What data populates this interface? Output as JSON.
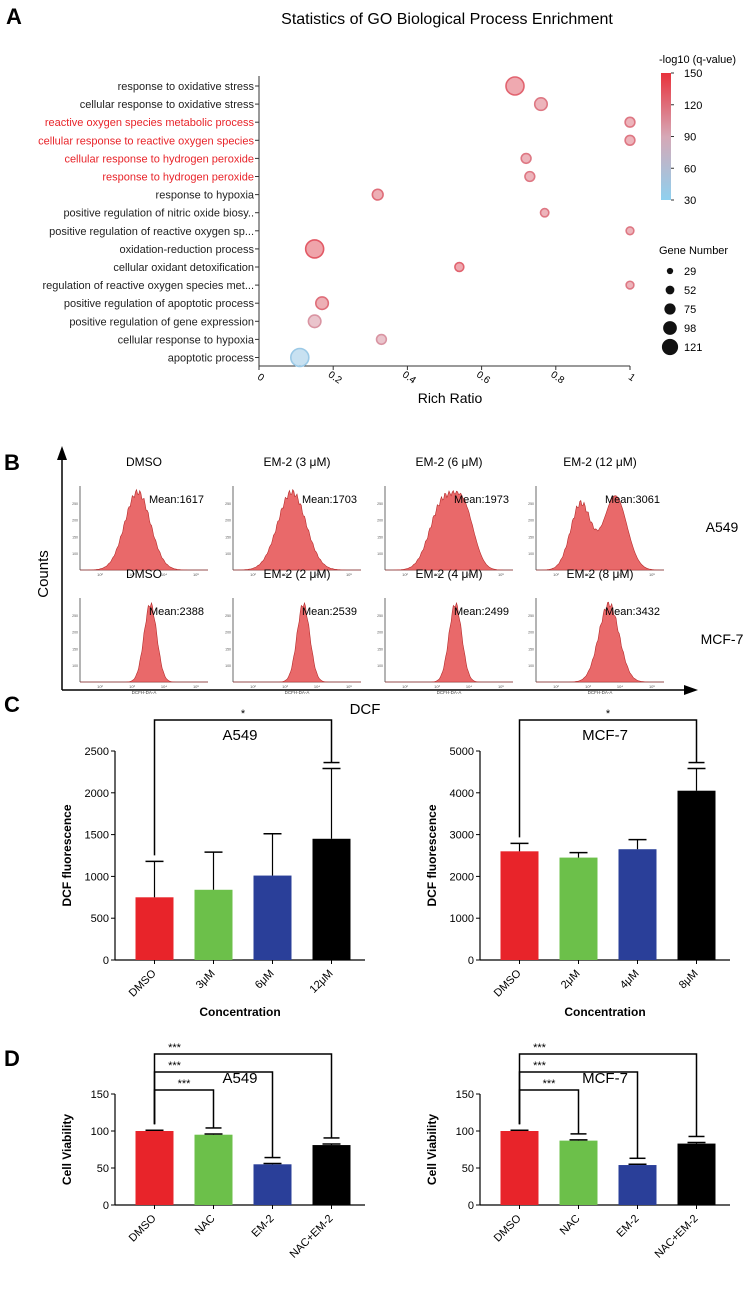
{
  "panel_labels": {
    "a": "A",
    "b": "B",
    "c": "C",
    "d": "D"
  },
  "colors": {
    "red": "#e8242a",
    "green": "#6cc04a",
    "blue": "#2a3f99",
    "black": "#000000",
    "hist_fill": "#e9696a",
    "hist_stroke": "#b52a2a",
    "scale_top": "#e8323c",
    "scale_mid": "#d6a8b6",
    "scale_bottom": "#8fd0ef"
  },
  "chart_data": [
    {
      "id": "go_enrichment",
      "type": "scatter",
      "title": "Statistics of GO Biological Process Enrichment",
      "xlabel": "Rich Ratio",
      "xlim": [
        0,
        1
      ],
      "xticks": [
        "0",
        "0.2",
        "0.4",
        "0.6",
        "0.8",
        "1"
      ],
      "colorbar": {
        "title": "-log10 (q-value)",
        "ticks": [
          "150",
          "120",
          "90",
          "60",
          "30"
        ],
        "range": [
          30,
          150
        ]
      },
      "size_legend": {
        "title": "Gene Number",
        "values": [
          "29",
          "52",
          "75",
          "98",
          "121"
        ]
      },
      "terms": [
        {
          "label": "response to oxidative stress",
          "x": 0.69,
          "genes": 121,
          "q": 125,
          "highlight": false
        },
        {
          "label": "cellular response to oxidative stress",
          "x": 0.76,
          "genes": 75,
          "q": 115,
          "highlight": false
        },
        {
          "label": "reactive oxygen species metabolic process",
          "x": 1.0,
          "genes": 52,
          "q": 115,
          "highlight": true
        },
        {
          "label": "cellular response to reactive oxygen species",
          "x": 1.0,
          "genes": 52,
          "q": 115,
          "highlight": true
        },
        {
          "label": "cellular response to hydrogen peroxide",
          "x": 0.72,
          "genes": 52,
          "q": 115,
          "highlight": true
        },
        {
          "label": "response to hydrogen peroxide",
          "x": 0.73,
          "genes": 52,
          "q": 115,
          "highlight": true
        },
        {
          "label": "response to hypoxia",
          "x": 0.32,
          "genes": 60,
          "q": 120,
          "highlight": false
        },
        {
          "label": "positive regulation of nitric oxide biosy..",
          "x": 0.77,
          "genes": 40,
          "q": 115,
          "highlight": false
        },
        {
          "label": "positive regulation of reactive oxygen sp...",
          "x": 1.0,
          "genes": 35,
          "q": 115,
          "highlight": false
        },
        {
          "label": "oxidation-reduction process",
          "x": 0.15,
          "genes": 121,
          "q": 130,
          "highlight": false
        },
        {
          "label": "cellular oxidant detoxification",
          "x": 0.54,
          "genes": 45,
          "q": 125,
          "highlight": false
        },
        {
          "label": "regulation of reactive oxygen species met...",
          "x": 1.0,
          "genes": 35,
          "q": 115,
          "highlight": false
        },
        {
          "label": "positive regulation of apoptotic process",
          "x": 0.17,
          "genes": 75,
          "q": 120,
          "highlight": false
        },
        {
          "label": "positive regulation of gene expression",
          "x": 0.15,
          "genes": 75,
          "q": 100,
          "highlight": false
        },
        {
          "label": "cellular response to hypoxia",
          "x": 0.33,
          "genes": 52,
          "q": 100,
          "highlight": false
        },
        {
          "label": "apoptotic process",
          "x": 0.11,
          "genes": 121,
          "q": 40,
          "highlight": false
        }
      ]
    },
    {
      "id": "flow_histograms",
      "type": "area",
      "ylabel": "Counts",
      "xlabel": "DCF",
      "subaxis_label": "DCFH-DA-A",
      "rows": [
        {
          "cell": "A549",
          "panels": [
            {
              "condition": "DMSO",
              "mean": "Mean:1617",
              "peaks": [
                {
                  "center": 0.45,
                  "width": 0.1,
                  "height": 1.0
                }
              ]
            },
            {
              "condition": "EM-2 (3 μM)",
              "mean": "Mean:1703",
              "peaks": [
                {
                  "center": 0.46,
                  "width": 0.11,
                  "height": 1.0
                }
              ]
            },
            {
              "condition": "EM-2 (6 μM)",
              "mean": "Mean:1973",
              "peaks": [
                {
                  "center": 0.45,
                  "width": 0.1,
                  "height": 0.85
                },
                {
                  "center": 0.62,
                  "width": 0.08,
                  "height": 0.7
                }
              ]
            },
            {
              "condition": "EM-2 (12 μM)",
              "mean": "Mean:3061",
              "peaks": [
                {
                  "center": 0.35,
                  "width": 0.08,
                  "height": 0.85
                },
                {
                  "center": 0.62,
                  "width": 0.09,
                  "height": 0.95
                }
              ]
            }
          ]
        },
        {
          "cell": "MCF-7",
          "panels": [
            {
              "condition": "DMSO",
              "mean": "Mean:2388",
              "peaks": [
                {
                  "center": 0.55,
                  "width": 0.05,
                  "height": 1.0
                }
              ]
            },
            {
              "condition": "EM-2 (2 μM)",
              "mean": "Mean:2539",
              "peaks": [
                {
                  "center": 0.55,
                  "width": 0.05,
                  "height": 1.0
                }
              ]
            },
            {
              "condition": "EM-2 (4 μM)",
              "mean": "Mean:2499",
              "peaks": [
                {
                  "center": 0.55,
                  "width": 0.05,
                  "height": 1.0
                }
              ]
            },
            {
              "condition": "EM-2 (8 μM)",
              "mean": "Mean:3432",
              "peaks": [
                {
                  "center": 0.57,
                  "width": 0.08,
                  "height": 1.0
                }
              ]
            }
          ]
        }
      ],
      "x_ticks": [
        "10²",
        "10³",
        "10⁴",
        "10⁵"
      ],
      "y_ticks": [
        "100",
        "150",
        "200",
        "250"
      ]
    },
    {
      "id": "dcf_a549",
      "type": "bar",
      "title": "A549",
      "ylabel": "DCF fluorescence",
      "xlabel": "Concentration",
      "categories": [
        "DMSO",
        "3μM",
        "6μM",
        "12μM"
      ],
      "values": [
        750,
        840,
        1010,
        1450
      ],
      "errors": [
        430,
        450,
        500,
        840
      ],
      "ylim": [
        0,
        2500
      ],
      "yticks": [
        "0",
        "500",
        "1000",
        "1500",
        "2000",
        "2500"
      ],
      "significance": [
        {
          "from": 0,
          "to": 3,
          "label": "*"
        }
      ]
    },
    {
      "id": "dcf_mcf7",
      "type": "bar",
      "title": "MCF-7",
      "ylabel": "DCF fluorescence",
      "xlabel": "Concentration",
      "categories": [
        "DMSO",
        "2μM",
        "4μM",
        "8μM"
      ],
      "values": [
        2600,
        2450,
        2650,
        4050
      ],
      "errors": [
        190,
        120,
        230,
        530
      ],
      "ylim": [
        0,
        5000
      ],
      "yticks": [
        "0",
        "1000",
        "2000",
        "3000",
        "4000",
        "5000"
      ],
      "significance": [
        {
          "from": 0,
          "to": 3,
          "label": "*"
        }
      ]
    },
    {
      "id": "viability_a549",
      "type": "bar",
      "title": "A549",
      "ylabel": "Cell Viability",
      "xlabel": "",
      "categories": [
        "DMSO",
        "NAC",
        "EM-2",
        "NAC+EM-2"
      ],
      "values": [
        100,
        95,
        55,
        81
      ],
      "errors": [
        1,
        1,
        1,
        1.5
      ],
      "ylim": [
        0,
        150
      ],
      "yticks": [
        "0",
        "50",
        "100",
        "150"
      ],
      "significance": [
        {
          "from": 0,
          "to": 1,
          "label": "***"
        },
        {
          "from": 0,
          "to": 2,
          "label": "***"
        },
        {
          "from": 0,
          "to": 3,
          "label": "***"
        }
      ]
    },
    {
      "id": "viability_mcf7",
      "type": "bar",
      "title": "MCF-7",
      "ylabel": "Cell Viability",
      "xlabel": "",
      "categories": [
        "DMSO",
        "NAC",
        "EM-2",
        "NAC+EM-2"
      ],
      "values": [
        100,
        87,
        54,
        83
      ],
      "errors": [
        1,
        1,
        1,
        1.5
      ],
      "ylim": [
        0,
        150
      ],
      "yticks": [
        "0",
        "50",
        "100",
        "150"
      ],
      "significance": [
        {
          "from": 0,
          "to": 1,
          "label": "***"
        },
        {
          "from": 0,
          "to": 2,
          "label": "***"
        },
        {
          "from": 0,
          "to": 3,
          "label": "***"
        }
      ]
    }
  ]
}
